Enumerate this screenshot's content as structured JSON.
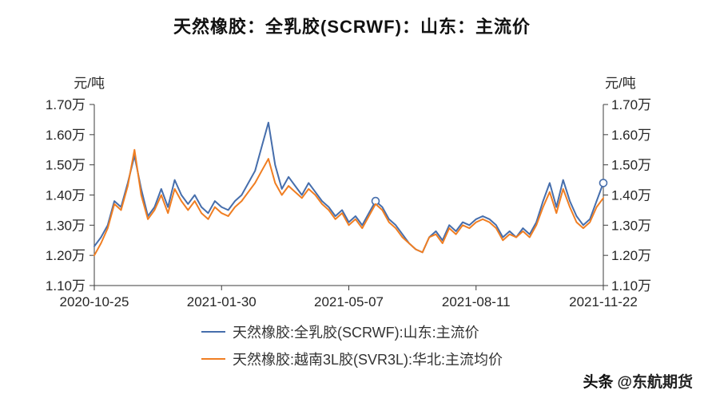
{
  "title": "天然橡胶：全乳胶(SCRWF)：山东：主流价",
  "axis": {
    "unit_left": "元/吨",
    "unit_right": "元/吨"
  },
  "legend": [
    {
      "label": "天然橡胶:全乳胶(SCRWF):山东:主流价",
      "color": "#466eac"
    },
    {
      "label": "天然橡胶:越南3L胶(SVR3L):华北:主流均价",
      "color": "#f07e22"
    }
  ],
  "watermark": {
    "brand": "头条",
    "handle": "@东航期货"
  },
  "chart_data": {
    "type": "line",
    "title": "天然橡胶：全乳胶(SCRWF)：山东：主流价",
    "ylabel": "元/吨",
    "ylim": [
      11000,
      17000
    ],
    "grid": false,
    "legend_position": "bottom",
    "y_ticks": [
      {
        "value": 11000,
        "label": "1.10万"
      },
      {
        "value": 12000,
        "label": "1.20万"
      },
      {
        "value": 13000,
        "label": "1.30万"
      },
      {
        "value": 14000,
        "label": "1.40万"
      },
      {
        "value": 15000,
        "label": "1.50万"
      },
      {
        "value": 16000,
        "label": "1.60万"
      },
      {
        "value": 17000,
        "label": "1.70万"
      }
    ],
    "x_ticks": [
      {
        "label": "2020-10-25",
        "pos": 0
      },
      {
        "label": "2021-01-30",
        "pos": 0.25
      },
      {
        "label": "2021-05-07",
        "pos": 0.5
      },
      {
        "label": "2021-08-11",
        "pos": 0.75
      },
      {
        "label": "2021-11-22",
        "pos": 1
      }
    ],
    "series": [
      {
        "name": "天然橡胶:全乳胶(SCRWF):山东:主流价",
        "color": "#466eac",
        "markers": [
          42,
          76
        ],
        "values": [
          12300,
          12600,
          13000,
          13800,
          13600,
          14400,
          15300,
          14200,
          13300,
          13600,
          14200,
          13600,
          14500,
          14000,
          13700,
          14000,
          13600,
          13400,
          13800,
          13600,
          13500,
          13800,
          14000,
          14400,
          14800,
          15600,
          16400,
          15000,
          14200,
          14600,
          14300,
          14000,
          14400,
          14100,
          13800,
          13600,
          13300,
          13500,
          13100,
          13300,
          13000,
          13400,
          13800,
          13600,
          13200,
          13000,
          12700,
          12400,
          12200,
          12100,
          12600,
          12800,
          12500,
          13000,
          12800,
          13100,
          13000,
          13200,
          13300,
          13200,
          13000,
          12600,
          12800,
          12600,
          12900,
          12700,
          13100,
          13800,
          14400,
          13600,
          14500,
          13800,
          13300,
          13000,
          13200,
          13800,
          14400
        ]
      },
      {
        "name": "天然橡胶:越南3L胶(SVR3L):华北:主流均价",
        "color": "#f07e22",
        "markers": [],
        "values": [
          12000,
          12400,
          12900,
          13700,
          13500,
          14300,
          15500,
          14000,
          13200,
          13500,
          14000,
          13400,
          14200,
          13800,
          13500,
          13800,
          13400,
          13200,
          13600,
          13400,
          13300,
          13600,
          13800,
          14100,
          14400,
          14800,
          15200,
          14400,
          14000,
          14300,
          14100,
          13900,
          14200,
          14000,
          13700,
          13500,
          13200,
          13400,
          13000,
          13200,
          12900,
          13300,
          13700,
          13500,
          13100,
          12900,
          12600,
          12400,
          12200,
          12100,
          12600,
          12700,
          12400,
          12900,
          12700,
          13000,
          12900,
          13100,
          13200,
          13100,
          12900,
          12500,
          12700,
          12600,
          12800,
          12600,
          13000,
          13600,
          14100,
          13400,
          14200,
          13600,
          13100,
          12900,
          13100,
          13600,
          13900
        ]
      }
    ]
  }
}
